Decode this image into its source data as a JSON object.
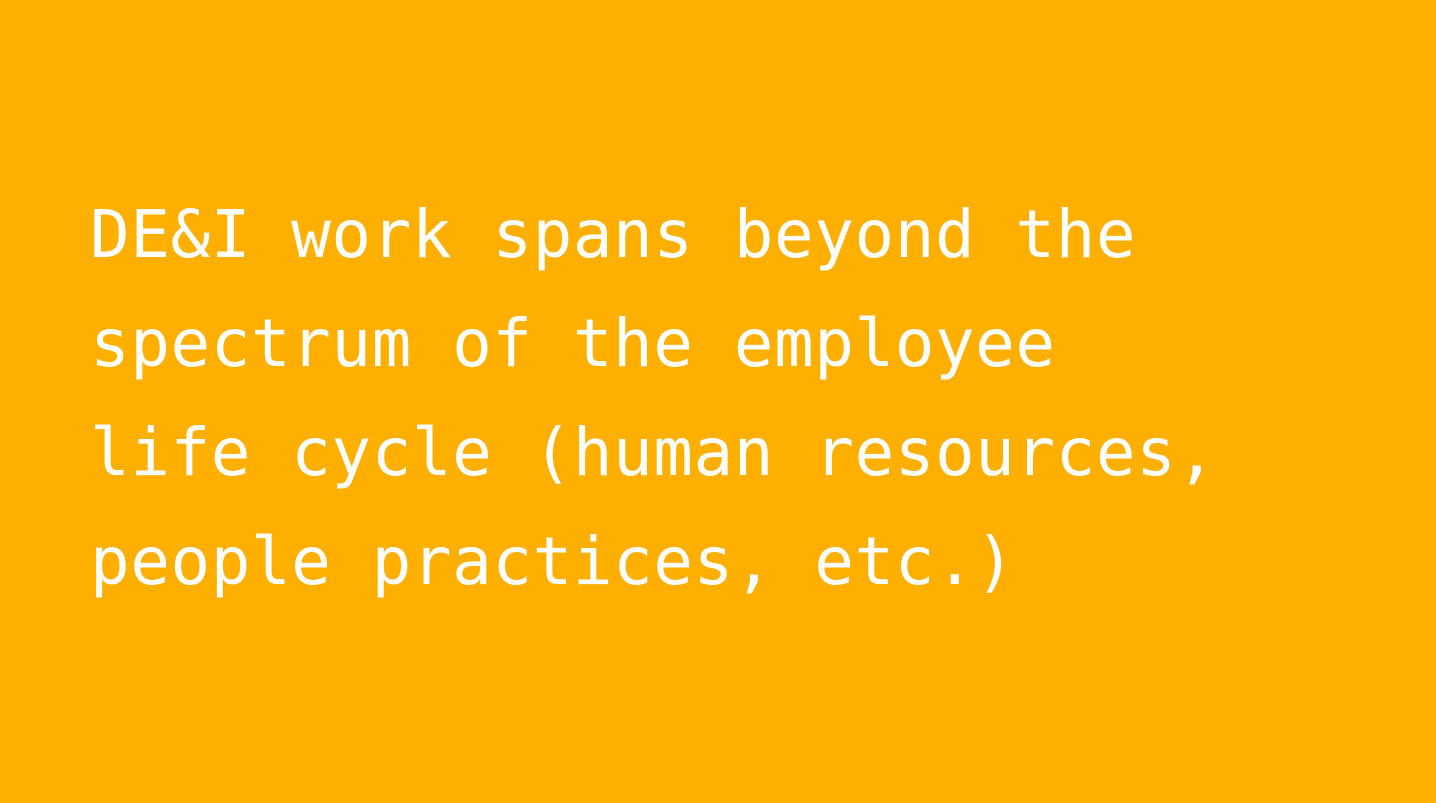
{
  "colors": {
    "background": "#FFAF00",
    "text": "#FFFFFF"
  },
  "quote": {
    "lines": [
      "DE&I work spans beyond the",
      "spectrum of the employee",
      "life cycle (human resources,",
      "people practices, etc.)"
    ]
  }
}
